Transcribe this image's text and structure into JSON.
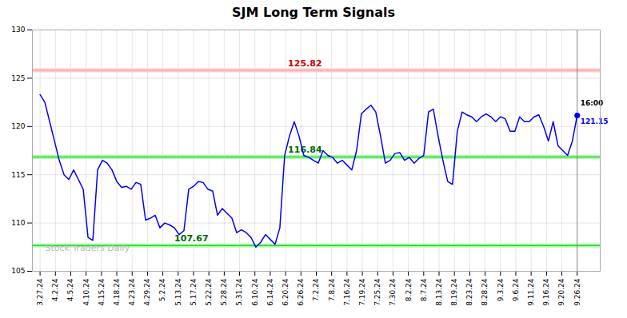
{
  "chart_data": {
    "type": "line",
    "title": "SJM Long Term Signals",
    "values": [
      123.3,
      122.5,
      120.5,
      118.5,
      116.5,
      115.0,
      114.5,
      115.5,
      114.5,
      113.5,
      108.5,
      108.2,
      115.5,
      116.5,
      116.2,
      115.5,
      114.3,
      113.7,
      113.8,
      113.5,
      114.2,
      114.0,
      110.3,
      110.5,
      110.8,
      109.5,
      110.0,
      109.8,
      109.5,
      108.8,
      109.2,
      113.5,
      113.8,
      114.3,
      114.2,
      113.5,
      113.3,
      110.8,
      111.5,
      111.0,
      110.5,
      109.0,
      109.3,
      109.0,
      108.5,
      107.5,
      108.0,
      108.8,
      108.3,
      107.8,
      109.5,
      117.0,
      119.0,
      120.5,
      119.0,
      117.0,
      116.8,
      116.5,
      116.2,
      117.5,
      117.0,
      116.8,
      116.2,
      116.5,
      116.0,
      115.5,
      117.5,
      121.3,
      121.8,
      122.2,
      121.5,
      119.0,
      116.2,
      116.5,
      117.2,
      117.3,
      116.5,
      116.8,
      116.2,
      116.7,
      117.0,
      121.5,
      121.8,
      119.0,
      116.5,
      114.3,
      114.0,
      119.5,
      121.5,
      121.2,
      121.0,
      120.5,
      121.0,
      121.3,
      121.0,
      120.5,
      121.0,
      120.8,
      119.5,
      119.5,
      121.0,
      120.5,
      120.5,
      121.0,
      121.2,
      120.0,
      118.5,
      120.5,
      118.0,
      117.5,
      117.0,
      118.5,
      121.15
    ],
    "color": "blue",
    "xlim": [
      -0.5,
      36.5
    ],
    "xticks": [
      {
        "value": 0,
        "label": "3.27.24"
      },
      {
        "value": 1,
        "label": "4.2.24"
      },
      {
        "value": 2,
        "label": "4.5.24"
      },
      {
        "value": 3,
        "label": "4.10.24"
      },
      {
        "value": 4,
        "label": "4.15.24"
      },
      {
        "value": 5,
        "label": "4.18.24"
      },
      {
        "value": 6,
        "label": "4.23.24"
      },
      {
        "value": 7,
        "label": "4.29.24"
      },
      {
        "value": 8,
        "label": "5.2.24"
      },
      {
        "value": 9,
        "label": "5.13.24"
      },
      {
        "value": 10,
        "label": "5.17.24"
      },
      {
        "value": 11,
        "label": "5.22.24"
      },
      {
        "value": 12,
        "label": "5.28.24"
      },
      {
        "value": 13,
        "label": "5.31.24"
      },
      {
        "value": 14,
        "label": "6.10.24"
      },
      {
        "value": 15,
        "label": "6.14.24"
      },
      {
        "value": 16,
        "label": "6.20.24"
      },
      {
        "value": 17,
        "label": "6.26.24"
      },
      {
        "value": 18,
        "label": "7.2.24"
      },
      {
        "value": 19,
        "label": "7.8.24"
      },
      {
        "value": 20,
        "label": "7.16.24"
      },
      {
        "value": 21,
        "label": "7.19.24"
      },
      {
        "value": 22,
        "label": "7.25.24"
      },
      {
        "value": 23,
        "label": "7.30.24"
      },
      {
        "value": 24,
        "label": "8.2.24"
      },
      {
        "value": 25,
        "label": "8.7.24"
      },
      {
        "value": 26,
        "label": "8.13.24"
      },
      {
        "value": 27,
        "label": "8.19.24"
      },
      {
        "value": 28,
        "label": "8.23.24"
      },
      {
        "value": 29,
        "label": "8.28.24"
      },
      {
        "value": 30,
        "label": "9.3.24"
      },
      {
        "value": 31,
        "label": "9.6.24"
      },
      {
        "value": 32,
        "label": "9.11.24"
      },
      {
        "value": 33,
        "label": "9.16.24"
      },
      {
        "value": 34,
        "label": "9.20.24"
      },
      {
        "value": 35,
        "label": "9.26.24"
      }
    ],
    "ylim": [
      105,
      130
    ],
    "yticks": [
      105,
      110,
      115,
      120,
      125,
      130
    ],
    "grid": true,
    "reference_lines": [
      {
        "value": 125.82,
        "color": "#ff9999",
        "band_color": "#ffcccc",
        "label_color": "#cc0000"
      },
      {
        "value": 116.84,
        "color": "#00bb00",
        "band_color": "#aaffaa",
        "label_color": "#006600"
      },
      {
        "value": 107.67,
        "color": "#00bb00",
        "band_color": "#aaffaa",
        "label_color": "#006600"
      }
    ],
    "last_point": {
      "value": 121.15,
      "label": "16:00",
      "color": "blue"
    },
    "watermark": "Stock Traders Daily"
  }
}
